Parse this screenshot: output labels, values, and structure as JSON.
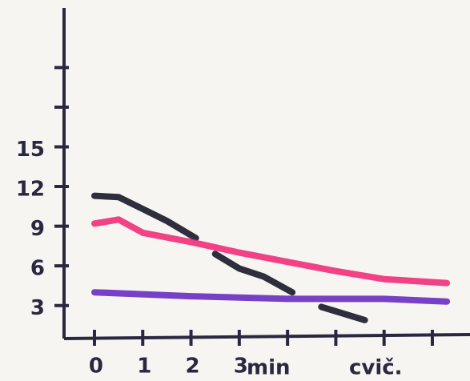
{
  "chart_data": {
    "type": "line",
    "x_label": "min",
    "annotation": "cvič.",
    "xlim": [
      -0.63,
      7.78
    ],
    "ylim": [
      0.5,
      25.5
    ],
    "xticks": [
      0,
      1,
      2,
      3,
      {
        "value": 4,
        "label": null
      },
      {
        "value": 5,
        "label": null
      },
      {
        "value": 6,
        "label": null
      },
      {
        "value": 7,
        "label": null
      }
    ],
    "yticks": [
      3,
      6,
      9,
      12,
      15,
      {
        "value": 18,
        "label": null
      },
      {
        "value": 21,
        "label": null
      }
    ],
    "series": [
      {
        "color": "#1c1c2c",
        "x": [
          0,
          0.5,
          1,
          1.5,
          2.1,
          2.3,
          2.5,
          3,
          3.5,
          4.1,
          4.4,
          4.7,
          5.6
        ],
        "values": [
          11.3,
          11.2,
          10.3,
          9.4,
          8.1,
          null,
          6.9,
          5.8,
          5.2,
          4.0,
          null,
          2.9,
          1.9
        ]
      },
      {
        "color": "#f0327c",
        "x": [
          0,
          0.5,
          1,
          2,
          3,
          4,
          5,
          6,
          7.3
        ],
        "values": [
          9.2,
          9.5,
          8.5,
          7.8,
          7.0,
          6.3,
          5.6,
          5.0,
          4.7
        ]
      },
      {
        "color": "#6b30c2",
        "x": [
          0,
          2,
          4,
          6,
          7.3
        ],
        "values": [
          4.0,
          3.7,
          3.5,
          3.5,
          3.3
        ]
      }
    ]
  }
}
